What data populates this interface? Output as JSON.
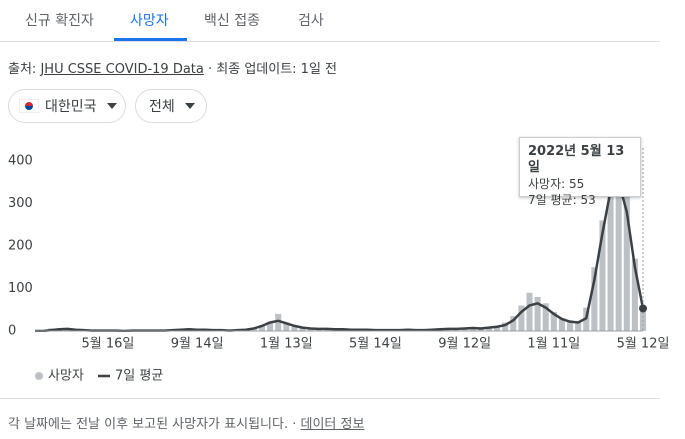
{
  "tabs": [
    "신규 확진자",
    "사망자",
    "백신 접종",
    "검사"
  ],
  "source": {
    "prefix": "출처:",
    "link": "JHU CSSE COVID-19 Data",
    "suffix": "· 최종 업데이트: 1일 전"
  },
  "filters": [
    "대한민국",
    "전체"
  ],
  "footer": {
    "text": "각 날짜에는 전날 이후 보고된 사망자가 표시됩니다. ·",
    "link": "데이터 정보"
  },
  "tooltip": {
    "date": "2022년 5월 13일",
    "rows": [
      {
        "label": "사망자:",
        "value": 55
      },
      {
        "label": "7일 평균:",
        "value": 53
      }
    ]
  },
  "chart_data": {
    "type": "bar_line",
    "categories": [
      null,
      null,
      null,
      null,
      null,
      null,
      null,
      null,
      null,
      "5월 16일",
      null,
      null,
      null,
      null,
      null,
      null,
      null,
      null,
      null,
      null,
      "9월 14일",
      null,
      null,
      null,
      null,
      null,
      null,
      null,
      null,
      null,
      null,
      "1월 13일",
      null,
      null,
      null,
      null,
      null,
      null,
      null,
      null,
      null,
      null,
      "5월 14일",
      null,
      null,
      null,
      null,
      null,
      null,
      null,
      null,
      null,
      null,
      "9월 12일",
      null,
      null,
      null,
      null,
      null,
      null,
      null,
      null,
      null,
      null,
      "1월 11일",
      null,
      null,
      null,
      null,
      null,
      null,
      null,
      null,
      null,
      null,
      "5월 12일"
    ],
    "series": [
      {
        "name": "사망자",
        "color": "#bdc1c6",
        "values": [
          0,
          0,
          6,
          5,
          6,
          2,
          3,
          1,
          2,
          0,
          1,
          0,
          2,
          1,
          0,
          1,
          1,
          3,
          5,
          5,
          3,
          4,
          2,
          1,
          2,
          2,
          4,
          8,
          14,
          22,
          40,
          20,
          10,
          9,
          7,
          4,
          6,
          3,
          5,
          2,
          4,
          3,
          2,
          3,
          1,
          2,
          4,
          1,
          3,
          4,
          5,
          7,
          4,
          8,
          6,
          9,
          8,
          12,
          20,
          35,
          60,
          90,
          80,
          65,
          45,
          30,
          25,
          20,
          55,
          150,
          260,
          400,
          420,
          320,
          170,
          55
        ]
      },
      {
        "name": "7일 평균",
        "color": "#3c4043",
        "values": [
          0,
          0,
          2,
          4,
          5,
          3,
          2,
          1,
          1,
          1,
          1,
          0,
          1,
          1,
          1,
          1,
          1,
          2,
          3,
          4,
          3,
          3,
          2,
          2,
          1,
          2,
          3,
          6,
          12,
          20,
          24,
          18,
          12,
          8,
          6,
          5,
          5,
          4,
          4,
          3,
          3,
          3,
          2,
          2,
          2,
          2,
          3,
          2,
          2,
          3,
          4,
          5,
          5,
          6,
          7,
          6,
          8,
          10,
          14,
          25,
          45,
          60,
          65,
          55,
          40,
          28,
          22,
          20,
          30,
          120,
          230,
          330,
          350,
          280,
          150,
          53
        ]
      }
    ],
    "ylim": [
      0,
      430
    ],
    "yticks": [
      0,
      100,
      200,
      300,
      400
    ],
    "grid": false
  }
}
